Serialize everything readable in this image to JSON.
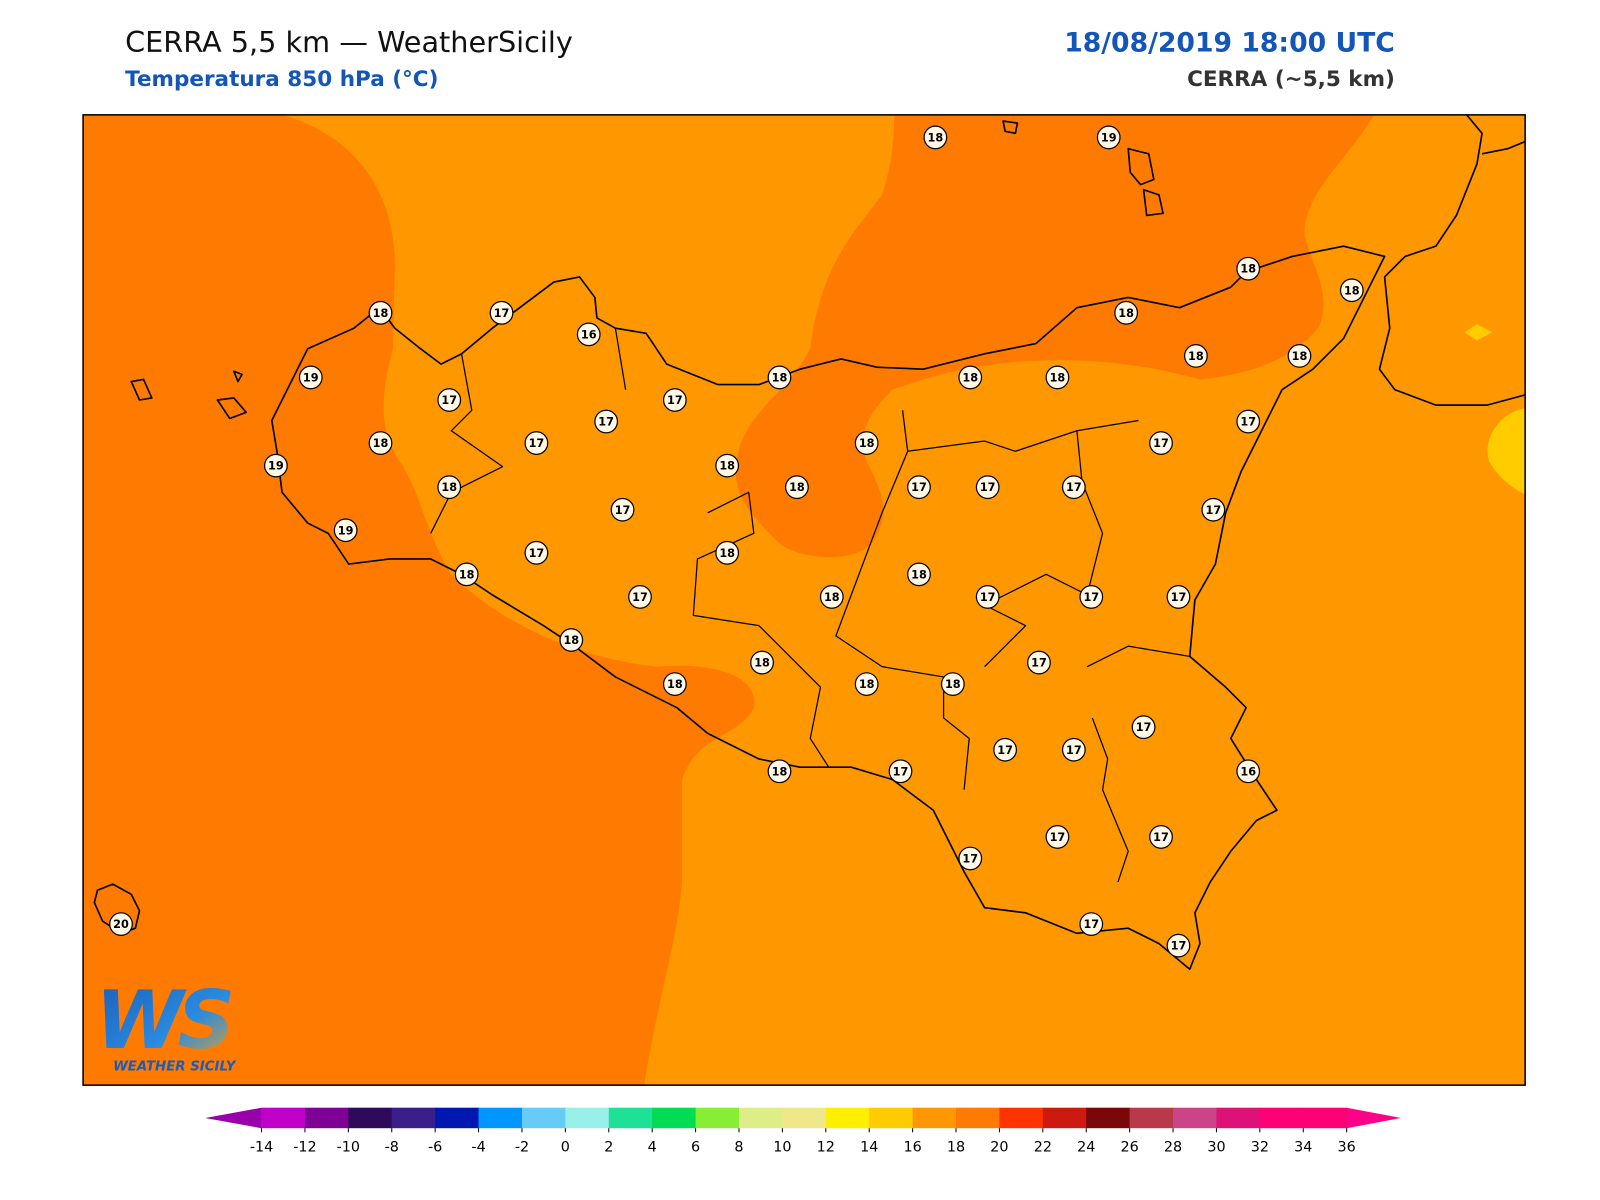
{
  "header": {
    "title": "CERRA 5,5 km — WeatherSicily",
    "subtitle": "Temperatura 850 hPa (°C)",
    "datetime": "18/08/2019 18:00 UTC",
    "model": "CERRA (~5,5 km)"
  },
  "stations": [
    18,
    19,
    18,
    17,
    16,
    18,
    18,
    18,
    19,
    17,
    17,
    18,
    18,
    18,
    18,
    18,
    17,
    17,
    19,
    18,
    17,
    18,
    17,
    18,
    18,
    18,
    17,
    17,
    17,
    17,
    17,
    19,
    17,
    18,
    18,
    18,
    17,
    18,
    17,
    17,
    17,
    18,
    17,
    18,
    18,
    18,
    18,
    17,
    17,
    17,
    18,
    17,
    16,
    17,
    17,
    17,
    20,
    17,
    17
  ],
  "colorbar": {
    "ticks": [
      -14,
      -12,
      -10,
      -8,
      -6,
      -4,
      -2,
      0,
      2,
      4,
      6,
      8,
      10,
      12,
      14,
      16,
      18,
      20,
      22,
      24,
      26,
      28,
      30,
      32,
      34,
      36
    ],
    "colors": [
      "#c000c8",
      "#7e0094",
      "#2e0a5a",
      "#3a1f8a",
      "#0018b0",
      "#0096ff",
      "#66ccf5",
      "#99f0e8",
      "#1ee096",
      "#00dd55",
      "#88ee33",
      "#ddee88",
      "#eee88a",
      "#ffee00",
      "#ffcc00",
      "#ff9700",
      "#ff7a00",
      "#ff3300",
      "#cc1a10",
      "#7a0808",
      "#b83a4a",
      "#cc4488",
      "#dd1177",
      "#ff0077",
      "#ff0077"
    ],
    "under": "#9900aa",
    "over": "#ff0088"
  },
  "logo": {
    "mark": "WS",
    "name": "WEATHER SICILY"
  }
}
